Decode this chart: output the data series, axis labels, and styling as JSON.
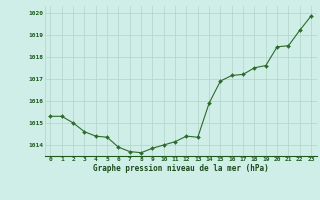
{
  "x": [
    0,
    1,
    2,
    3,
    4,
    5,
    6,
    7,
    8,
    9,
    10,
    11,
    12,
    13,
    14,
    15,
    16,
    17,
    18,
    19,
    20,
    21,
    22,
    23
  ],
  "y": [
    1015.3,
    1015.3,
    1015.0,
    1014.6,
    1014.4,
    1014.35,
    1013.9,
    1013.7,
    1013.65,
    1013.85,
    1014.0,
    1014.15,
    1014.4,
    1014.35,
    1015.9,
    1016.9,
    1017.15,
    1017.2,
    1017.5,
    1017.6,
    1018.45,
    1018.5,
    1019.2,
    1019.85
  ],
  "line_color": "#2d6a2d",
  "marker_color": "#2d6a2d",
  "bg_color": "#d0eee8",
  "grid_color": "#b0d4c8",
  "xlabel": "Graphe pression niveau de la mer (hPa)",
  "xlabel_color": "#1a4a1a",
  "tick_color": "#1a5a1a",
  "ylim_min": 1013.5,
  "ylim_max": 1020.3,
  "ytick_values": [
    1014,
    1015,
    1016,
    1017,
    1018,
    1019,
    1020
  ],
  "xtick_values": [
    0,
    1,
    2,
    3,
    4,
    5,
    6,
    7,
    8,
    9,
    10,
    11,
    12,
    13,
    14,
    15,
    16,
    17,
    18,
    19,
    20,
    21,
    22,
    23
  ]
}
